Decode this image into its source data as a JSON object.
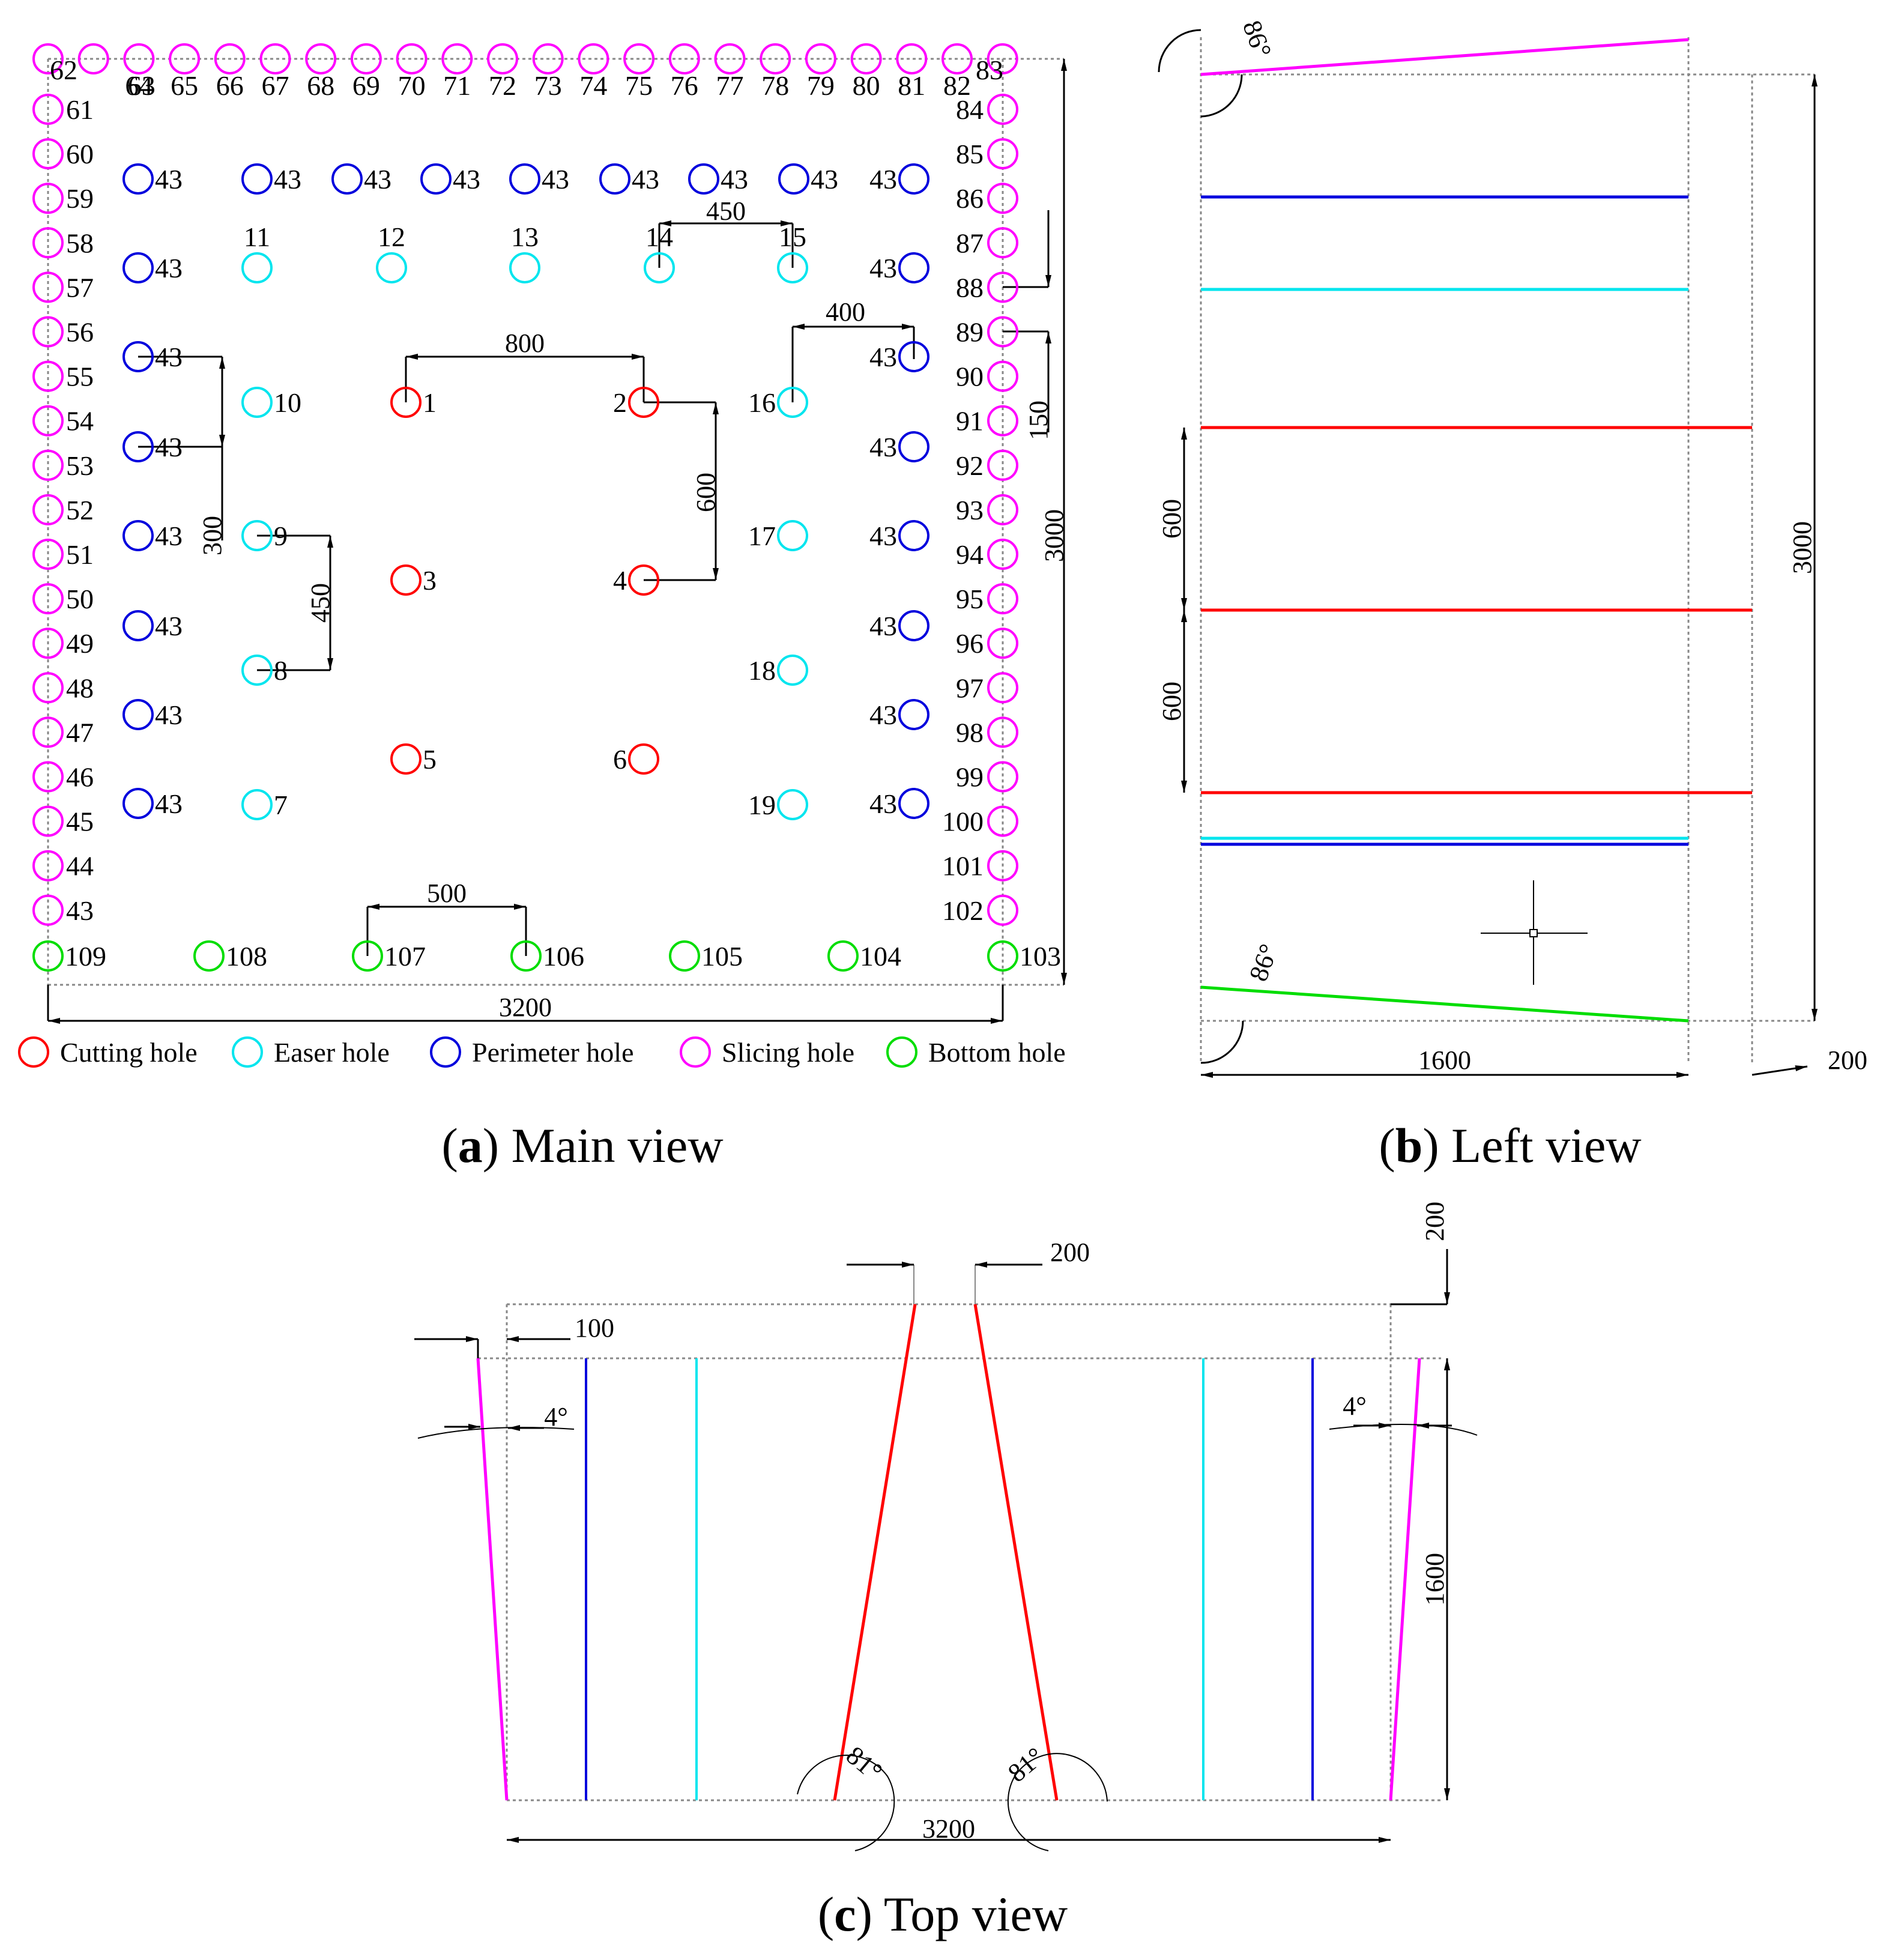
{
  "colors": {
    "cutting": "#ff0000",
    "easer": "#00e5ee",
    "perimeter": "#0000dd",
    "slicing": "#ff00ff",
    "bottom": "#00dd00",
    "line": "#000000",
    "guide": "#888888"
  },
  "captions": {
    "a_letter": "a",
    "a_text": " Main view",
    "b_letter": "b",
    "b_text": " Left view",
    "c_letter": "c",
    "c_text": " Top view"
  },
  "legend": [
    {
      "type": "cutting",
      "label": "Cutting hole"
    },
    {
      "type": "easer",
      "label": "Easer hole"
    },
    {
      "type": "perimeter",
      "label": "Perimeter hole"
    },
    {
      "type": "slicing",
      "label": "Slicing hole"
    },
    {
      "type": "bottom",
      "label": "Bottom hole"
    }
  ],
  "main_view": {
    "dims": {
      "d800": "800",
      "d450_top": "450",
      "d400": "400",
      "d600": "600",
      "d300": "300",
      "d450_left": "450",
      "d150": "150",
      "d3000": "3000",
      "d500": "500",
      "d3200": "3200"
    },
    "cutting_holes": [
      "1",
      "2",
      "3",
      "4",
      "5",
      "6"
    ],
    "easer_holes": [
      "7",
      "8",
      "9",
      "10",
      "11",
      "12",
      "13",
      "14",
      "15",
      "16",
      "17",
      "18",
      "19"
    ],
    "perimeter_label": "43",
    "slicing_top": [
      "62",
      "63",
      "64",
      "65",
      "66",
      "67",
      "68",
      "69",
      "70",
      "71",
      "72",
      "73",
      "74",
      "75",
      "76",
      "77",
      "78",
      "79",
      "80",
      "81",
      "82",
      "83"
    ],
    "slicing_left": [
      "61",
      "60",
      "59",
      "58",
      "57",
      "56",
      "55",
      "54",
      "53",
      "52",
      "51",
      "50",
      "49",
      "48",
      "47",
      "46",
      "45",
      "44",
      "43"
    ],
    "slicing_right": [
      "84",
      "85",
      "86",
      "87",
      "88",
      "89",
      "90",
      "91",
      "92",
      "93",
      "94",
      "95",
      "96",
      "97",
      "98",
      "99",
      "100",
      "101",
      "102"
    ],
    "bottom_holes": [
      "109",
      "108",
      "107",
      "106",
      "105",
      "104",
      "103"
    ]
  },
  "left_view": {
    "angle_top": "86°",
    "angle_bottom": "86°",
    "d600_a": "600",
    "d600_b": "600",
    "d3000": "3000",
    "d1600": "1600",
    "d200": "200"
  },
  "top_view": {
    "d200_top": "200",
    "d200_right": "200",
    "d100": "100",
    "angle_left": "4°",
    "angle_right": "4°",
    "d1600": "1600",
    "angle_cut_left": "81°",
    "angle_cut_right": "81°",
    "d3200": "3200"
  }
}
